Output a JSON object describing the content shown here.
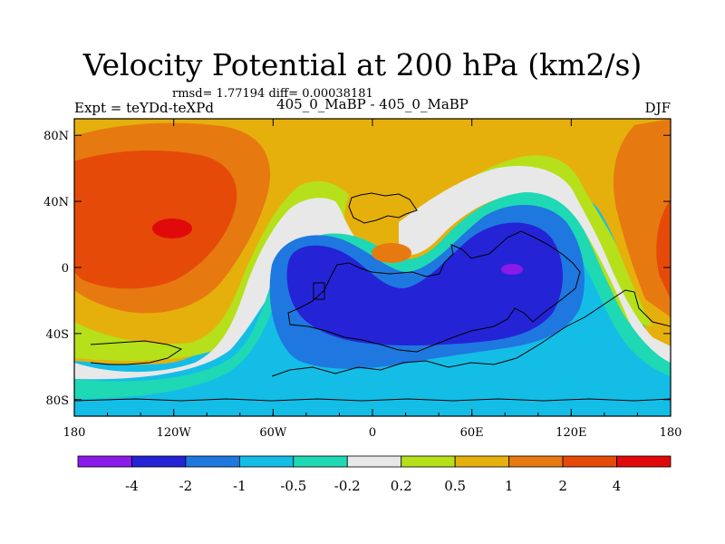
{
  "chart_data": {
    "type": "heatmap",
    "title": "Velocity Potential at 200 hPa (km2/s)",
    "stats_text": "rmsd= 1.77194 diff= 0.00038181",
    "left_label": "Expt = teYDd-teXPd",
    "center_label": "405_0_MaBP - 405_0_MaBP",
    "right_label": "DJF",
    "x_ticks": [
      "180",
      "120W",
      "60W",
      "0",
      "60E",
      "120E",
      "180"
    ],
    "y_ticks": [
      "80N",
      "40N",
      "0",
      "40S",
      "80S"
    ],
    "xlim": [
      -180,
      180
    ],
    "ylim": [
      -90,
      90
    ],
    "colorbar": {
      "labels": [
        "-4",
        "-2",
        "-1",
        "-0.5",
        "-0.2",
        "0.2",
        "0.5",
        "1",
        "2",
        "4"
      ],
      "colors": [
        "#8a1ae8",
        "#2424d6",
        "#1e78e0",
        "#14bde6",
        "#1fd8b4",
        "#e8e8e8",
        "#b5e01a",
        "#e6b00c",
        "#e67a10",
        "#e64a08",
        "#e00a0a"
      ]
    },
    "features": [
      {
        "name": "high-north-pacific",
        "level": "2 to 4",
        "lon": -135,
        "lat": 30
      },
      {
        "name": "low-indian-ocean",
        "level": "-4 to -2",
        "lon": 85,
        "lat": 0
      },
      {
        "name": "low-atlantic",
        "level": "-2 to -1",
        "lon": -20,
        "lat": -10
      }
    ]
  }
}
